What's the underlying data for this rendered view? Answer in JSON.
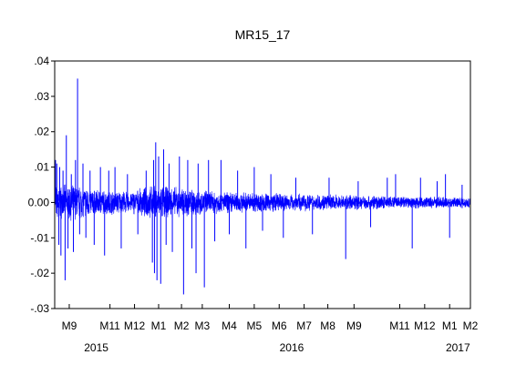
{
  "chart_data": {
    "type": "line",
    "title": "MR15_17",
    "xlabel": "",
    "ylabel": "",
    "ylim": [
      -0.03,
      0.04
    ],
    "y_ticks": [
      {
        "value": 0.04,
        "label": ".04"
      },
      {
        "value": 0.03,
        "label": ".03"
      },
      {
        "value": 0.02,
        "label": ".02"
      },
      {
        "value": 0.01,
        "label": ".01"
      },
      {
        "value": 0.0,
        "label": "0.00"
      },
      {
        "value": -0.01,
        "label": "-.01"
      },
      {
        "value": -0.02,
        "label": "-.02"
      },
      {
        "value": -0.03,
        "label": "-.03"
      }
    ],
    "x_month_ticks": [
      {
        "label": "M9",
        "t": 0.035
      },
      {
        "label": "M11",
        "t": 0.133
      },
      {
        "label": "M12",
        "t": 0.192
      },
      {
        "label": "M1",
        "t": 0.25
      },
      {
        "label": "M2",
        "t": 0.305
      },
      {
        "label": "M3",
        "t": 0.355
      },
      {
        "label": "M4",
        "t": 0.42
      },
      {
        "label": "M5",
        "t": 0.48
      },
      {
        "label": "M6",
        "t": 0.54
      },
      {
        "label": "M7",
        "t": 0.6
      },
      {
        "label": "M8",
        "t": 0.657
      },
      {
        "label": "M9",
        "t": 0.72
      },
      {
        "label": "M11",
        "t": 0.83
      },
      {
        "label": "M12",
        "t": 0.89
      },
      {
        "label": "M1",
        "t": 0.95
      },
      {
        "label": "M2",
        "t": 1.0
      }
    ],
    "x_year_labels": [
      {
        "label": "2015",
        "t": 0.1
      },
      {
        "label": "2016",
        "t": 0.57
      },
      {
        "label": "2017",
        "t": 0.97
      }
    ],
    "grid": false,
    "legend": "none",
    "series": [
      {
        "color": "#0000ff",
        "noise_profile": [
          {
            "t": 0.0,
            "amp": 0.004
          },
          {
            "t": 0.05,
            "amp": 0.004
          },
          {
            "t": 0.1,
            "amp": 0.003
          },
          {
            "t": 0.18,
            "amp": 0.0025
          },
          {
            "t": 0.24,
            "amp": 0.004
          },
          {
            "t": 0.3,
            "amp": 0.0035
          },
          {
            "t": 0.4,
            "amp": 0.0025
          },
          {
            "t": 0.6,
            "amp": 0.002
          },
          {
            "t": 0.8,
            "amp": 0.0015
          },
          {
            "t": 1.0,
            "amp": 0.0013
          }
        ],
        "spikes": [
          {
            "t": 0.002,
            "value": 0.012
          },
          {
            "t": 0.005,
            "value": 0.011
          },
          {
            "t": 0.01,
            "value": -0.012
          },
          {
            "t": 0.012,
            "value": 0.01
          },
          {
            "t": 0.015,
            "value": -0.015
          },
          {
            "t": 0.02,
            "value": 0.009
          },
          {
            "t": 0.025,
            "value": -0.022
          },
          {
            "t": 0.028,
            "value": 0.019
          },
          {
            "t": 0.032,
            "value": -0.013
          },
          {
            "t": 0.04,
            "value": 0.008
          },
          {
            "t": 0.045,
            "value": -0.014
          },
          {
            "t": 0.05,
            "value": 0.012
          },
          {
            "t": 0.055,
            "value": 0.035
          },
          {
            "t": 0.06,
            "value": -0.009
          },
          {
            "t": 0.068,
            "value": 0.011
          },
          {
            "t": 0.075,
            "value": -0.01
          },
          {
            "t": 0.085,
            "value": 0.009
          },
          {
            "t": 0.095,
            "value": -0.012
          },
          {
            "t": 0.11,
            "value": 0.01
          },
          {
            "t": 0.12,
            "value": -0.015
          },
          {
            "t": 0.13,
            "value": 0.009
          },
          {
            "t": 0.145,
            "value": 0.01
          },
          {
            "t": 0.16,
            "value": -0.013
          },
          {
            "t": 0.175,
            "value": 0.008
          },
          {
            "t": 0.2,
            "value": -0.009
          },
          {
            "t": 0.22,
            "value": 0.009
          },
          {
            "t": 0.235,
            "value": -0.017
          },
          {
            "t": 0.238,
            "value": 0.012
          },
          {
            "t": 0.24,
            "value": -0.02
          },
          {
            "t": 0.243,
            "value": 0.017
          },
          {
            "t": 0.246,
            "value": -0.022
          },
          {
            "t": 0.25,
            "value": 0.013
          },
          {
            "t": 0.255,
            "value": -0.023
          },
          {
            "t": 0.262,
            "value": 0.015
          },
          {
            "t": 0.268,
            "value": -0.012
          },
          {
            "t": 0.275,
            "value": 0.011
          },
          {
            "t": 0.283,
            "value": -0.014
          },
          {
            "t": 0.3,
            "value": 0.013
          },
          {
            "t": 0.31,
            "value": -0.026
          },
          {
            "t": 0.32,
            "value": 0.012
          },
          {
            "t": 0.33,
            "value": -0.013
          },
          {
            "t": 0.34,
            "value": -0.02
          },
          {
            "t": 0.345,
            "value": 0.011
          },
          {
            "t": 0.36,
            "value": -0.024
          },
          {
            "t": 0.37,
            "value": 0.012
          },
          {
            "t": 0.385,
            "value": -0.011
          },
          {
            "t": 0.4,
            "value": 0.012
          },
          {
            "t": 0.42,
            "value": -0.009
          },
          {
            "t": 0.44,
            "value": 0.009
          },
          {
            "t": 0.46,
            "value": -0.013
          },
          {
            "t": 0.48,
            "value": 0.01
          },
          {
            "t": 0.5,
            "value": -0.008
          },
          {
            "t": 0.52,
            "value": 0.008
          },
          {
            "t": 0.55,
            "value": -0.01
          },
          {
            "t": 0.58,
            "value": 0.007
          },
          {
            "t": 0.62,
            "value": -0.009
          },
          {
            "t": 0.66,
            "value": 0.007
          },
          {
            "t": 0.7,
            "value": -0.016
          },
          {
            "t": 0.73,
            "value": 0.006
          },
          {
            "t": 0.76,
            "value": -0.007
          },
          {
            "t": 0.8,
            "value": 0.007
          },
          {
            "t": 0.82,
            "value": 0.008
          },
          {
            "t": 0.86,
            "value": -0.013
          },
          {
            "t": 0.88,
            "value": 0.007
          },
          {
            "t": 0.92,
            "value": 0.006
          },
          {
            "t": 0.95,
            "value": -0.01
          },
          {
            "t": 0.94,
            "value": 0.008
          },
          {
            "t": 0.98,
            "value": 0.005
          }
        ]
      }
    ]
  }
}
